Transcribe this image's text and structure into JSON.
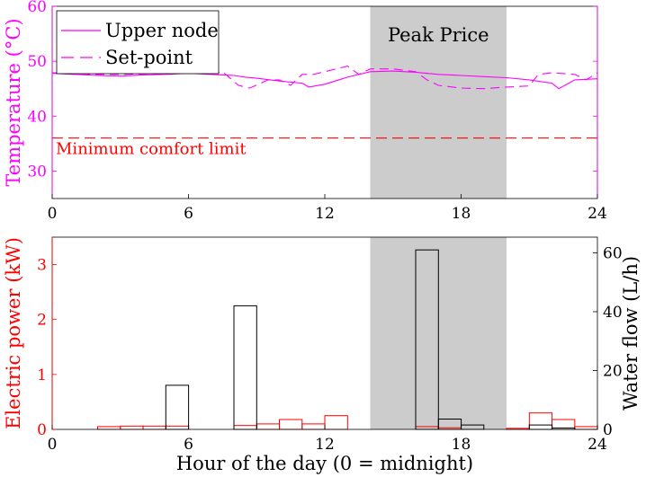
{
  "chart_data": [
    {
      "type": "line",
      "title": "",
      "xlabel": "",
      "ylabel": "Temperature (°C)",
      "xlim": [
        0,
        24
      ],
      "ylim": [
        25,
        60
      ],
      "xticks": [
        "0",
        "6",
        "12",
        "18",
        "24"
      ],
      "yticks": [
        "30",
        "40",
        "50",
        "60"
      ],
      "legend": [
        "Upper node",
        "Set-point"
      ],
      "legend_position": "top-left",
      "shaded_region": {
        "label": "Peak Price",
        "x": [
          14,
          20
        ]
      },
      "annotations": [
        {
          "text": "Minimum comfort limit",
          "y": 36
        }
      ],
      "series": [
        {
          "name": "Upper node",
          "style": "solid",
          "color": "#ff00ff",
          "x": [
            0,
            1,
            2,
            3,
            4,
            5,
            6,
            7,
            8,
            8.5,
            9,
            10,
            11,
            11.3,
            12,
            13,
            14,
            15,
            16,
            17,
            18,
            19,
            20,
            21,
            22,
            22.3,
            23,
            24
          ],
          "y": [
            47.8,
            47.6,
            47.4,
            47.3,
            47.5,
            47.6,
            47.8,
            47.6,
            47.4,
            47.1,
            46.9,
            46.4,
            46.0,
            45.3,
            45.8,
            47.1,
            48.1,
            48.2,
            48.0,
            47.6,
            47.4,
            47.2,
            47.0,
            46.6,
            46.0,
            45.0,
            46.6,
            46.8
          ]
        },
        {
          "name": "Set-point",
          "style": "dashed",
          "color": "#ff00ff",
          "x": [
            0,
            1,
            2,
            3,
            4,
            5,
            6,
            7,
            7.5,
            8.2,
            8.7,
            9.5,
            10,
            10.5,
            11,
            11.5,
            12,
            12.5,
            13,
            13.5,
            14,
            15,
            16,
            16.5,
            17,
            18,
            19,
            20,
            21,
            21.4,
            22,
            23,
            23.5,
            24
          ],
          "y": [
            47.9,
            47.8,
            47.6,
            47.6,
            47.7,
            47.8,
            47.9,
            47.7,
            48.1,
            45.6,
            45.1,
            46.6,
            46.6,
            45.6,
            47.6,
            47.6,
            48.1,
            48.6,
            49.1,
            47.6,
            48.6,
            48.6,
            48.1,
            46.6,
            45.6,
            45.1,
            45.0,
            45.3,
            45.5,
            47.6,
            47.9,
            47.6,
            46.6,
            47.9
          ]
        },
        {
          "name": "Minimum comfort limit",
          "style": "dashed",
          "color": "#ff0000",
          "x": [
            0,
            24
          ],
          "y": [
            36,
            36
          ]
        }
      ]
    },
    {
      "type": "bar",
      "title": "",
      "xlabel": "Hour of the day (0 = midnight)",
      "ylabel": "Electric power (kW)",
      "ylabel_right": "Water flow (L/h)",
      "xlim": [
        0,
        24
      ],
      "ylim": [
        0,
        3.5
      ],
      "ylim_right": [
        0,
        65.33
      ],
      "xticks": [
        "0",
        "6",
        "12",
        "18",
        "24"
      ],
      "yticks": [
        "0",
        "1",
        "2",
        "3"
      ],
      "yticks_right": [
        "0",
        "20",
        "40",
        "60"
      ],
      "shaded_region": {
        "x": [
          14,
          20
        ]
      },
      "series": [
        {
          "name": "Electric power",
          "axis": "left",
          "color": "#ff0000",
          "categories": [
            0,
            1,
            2,
            3,
            4,
            5,
            6,
            7,
            8,
            9,
            10,
            11,
            12,
            13,
            14,
            15,
            16,
            17,
            18,
            19,
            20,
            21,
            22,
            23
          ],
          "values": [
            0,
            0,
            0.05,
            0.06,
            0.06,
            0.06,
            0,
            0,
            0.07,
            0.1,
            0.18,
            0.1,
            0.25,
            0,
            0,
            0,
            0.05,
            0.03,
            0,
            0,
            0.02,
            0.3,
            0.18,
            0.05
          ]
        },
        {
          "name": "Water flow",
          "axis": "right",
          "color": "#000000",
          "categories": [
            0,
            1,
            2,
            3,
            4,
            5,
            6,
            7,
            8,
            9,
            10,
            11,
            12,
            13,
            14,
            15,
            16,
            17,
            18,
            19,
            20,
            21,
            22,
            23
          ],
          "values": [
            0,
            0,
            0,
            0,
            0,
            15,
            0,
            0,
            42,
            0,
            0,
            0,
            0,
            0,
            0,
            0,
            61,
            3.5,
            1.5,
            0,
            0,
            1.5,
            0.5,
            0
          ]
        }
      ]
    }
  ]
}
